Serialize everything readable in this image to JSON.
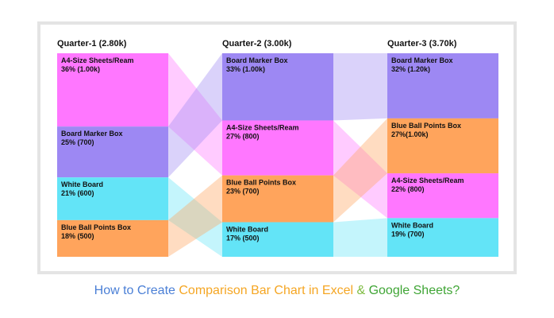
{
  "chart_data": {
    "type": "bar",
    "subtype": "stacked-100-percent-with-connectors",
    "categories": [
      "Quarter-1 (2.80k)",
      "Quarter-2 (3.00k)",
      "Quarter-3 (3.70k)"
    ],
    "totals": [
      2800,
      3000,
      3700
    ],
    "columns": [
      {
        "label": "Quarter-1 (2.80k)",
        "segments": [
          {
            "name": "A4-Size Sheets/Ream",
            "pct": 36,
            "value": 1000,
            "line1": "A4-Size Sheets/Ream",
            "line2": "36% (1.00k)"
          },
          {
            "name": "Board Marker Box",
            "pct": 25,
            "value": 700,
            "line1": "Board Marker Box",
            "line2": "25% (700)"
          },
          {
            "name": "White Board",
            "pct": 21,
            "value": 600,
            "line1": "White Board",
            "line2": "21% (600)"
          },
          {
            "name": "Blue Ball Points Box",
            "pct": 18,
            "value": 500,
            "line1": "Blue Ball Points Box",
            "line2": "18% (500)"
          }
        ]
      },
      {
        "label": "Quarter-2 (3.00k)",
        "segments": [
          {
            "name": "Board Marker Box",
            "pct": 33,
            "value": 1000,
            "line1": "Board Marker Box",
            "line2": "33% (1.00k)"
          },
          {
            "name": "A4-Size Sheets/Ream",
            "pct": 27,
            "value": 800,
            "line1": "A4-Size Sheets/Ream",
            "line2": "27% (800)"
          },
          {
            "name": "Blue Ball Points Box",
            "pct": 23,
            "value": 700,
            "line1": "Blue Ball Points Box",
            "line2": "23% (700)"
          },
          {
            "name": "White Board",
            "pct": 17,
            "value": 500,
            "line1": "White Board",
            "line2": "17% (500)"
          }
        ]
      },
      {
        "label": "Quarter-3 (3.70k)",
        "segments": [
          {
            "name": "Board Marker Box",
            "pct": 32,
            "value": 1200,
            "line1": "Board Marker Box",
            "line2": "32% (1.20k)"
          },
          {
            "name": "Blue Ball Points Box",
            "pct": 27,
            "value": 1000,
            "line1": "Blue Ball Points Box",
            "line2": "27%(1.00k)"
          },
          {
            "name": "A4-Size Sheets/Ream",
            "pct": 22,
            "value": 800,
            "line1": "A4-Size Sheets/Ream",
            "line2": "22% (800)"
          },
          {
            "name": "White Board",
            "pct": 19,
            "value": 700,
            "line1": "White Board",
            "line2": "19% (700)"
          }
        ]
      }
    ],
    "colors": {
      "A4-Size Sheets/Ream": "#ff77ff",
      "Board Marker Box": "#9d88f3",
      "White Board": "#63e4f7",
      "Blue Ball Points Box": "#ffa45c"
    },
    "legend": "none",
    "grid": false
  },
  "caption": {
    "part1": "How to Create ",
    "part2": "Comparison Bar Chart in Excel",
    "part3": " & ",
    "part4": "Google Sheets?",
    "color1": "#4a7fd6",
    "color2": "#f5a623",
    "color3": "#7dbb3f",
    "color4": "#3fa535"
  }
}
